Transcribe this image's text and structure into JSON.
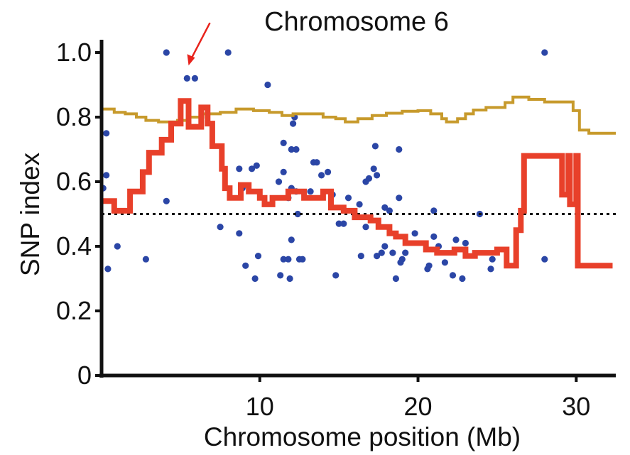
{
  "chart_data": {
    "type": "scatter",
    "title": "Chromosome 6",
    "xlabel": "Chromosome position (Mb)",
    "ylabel": "SNP index",
    "xlim": [
      0,
      32.5
    ],
    "ylim": [
      0,
      1.0
    ],
    "x_ticks": [
      {
        "value": 10,
        "label": "10"
      },
      {
        "value": 20,
        "label": "20"
      },
      {
        "value": 30,
        "label": "30"
      }
    ],
    "y_ticks": [
      {
        "value": 0,
        "label": "0"
      },
      {
        "value": 0.2,
        "label": "0.2"
      },
      {
        "value": 0.4,
        "label": "0.4"
      },
      {
        "value": 0.6,
        "label": "0.6"
      },
      {
        "value": 0.8,
        "label": "0.8"
      },
      {
        "value": 1.0,
        "label": "1.0"
      }
    ],
    "reference_line": {
      "y": 0.5,
      "style": "dotted",
      "color": "#111111"
    },
    "arrow_marker": {
      "x": 5.5,
      "y": 0.96,
      "color": "#e8231c"
    },
    "series": [
      {
        "kind": "points",
        "color": "#2b46a6",
        "points": [
          [
            0.1,
            0.58
          ],
          [
            0.3,
            0.75
          ],
          [
            0.3,
            0.62
          ],
          [
            0.4,
            0.33
          ],
          [
            1.0,
            0.4
          ],
          [
            2.8,
            0.36
          ],
          [
            4.1,
            1.0
          ],
          [
            4.1,
            0.54
          ],
          [
            5.4,
            0.92
          ],
          [
            5.9,
            0.92
          ],
          [
            8.0,
            1.0
          ],
          [
            7.5,
            0.46
          ],
          [
            8.7,
            0.64
          ],
          [
            8.7,
            0.44
          ],
          [
            8.9,
            0.58
          ],
          [
            9.1,
            0.34
          ],
          [
            9.5,
            0.64
          ],
          [
            9.8,
            0.65
          ],
          [
            9.7,
            0.3
          ],
          [
            9.9,
            0.37
          ],
          [
            10.5,
            0.9
          ],
          [
            11.2,
            0.6
          ],
          [
            11.5,
            0.72
          ],
          [
            11.5,
            0.63
          ],
          [
            11.5,
            0.36
          ],
          [
            11.3,
            0.31
          ],
          [
            11.8,
            0.55
          ],
          [
            11.8,
            0.36
          ],
          [
            11.9,
            0.3
          ],
          [
            12.0,
            0.7
          ],
          [
            12.0,
            0.58
          ],
          [
            12.0,
            0.42
          ],
          [
            12.1,
            0.78
          ],
          [
            12.2,
            0.8
          ],
          [
            12.3,
            0.7
          ],
          [
            12.5,
            0.36
          ],
          [
            12.3,
            0.57
          ],
          [
            12.4,
            0.5
          ],
          [
            12.7,
            0.36
          ],
          [
            13.2,
            0.57
          ],
          [
            13.4,
            0.66
          ],
          [
            13.6,
            0.66
          ],
          [
            13.9,
            0.62
          ],
          [
            14.3,
            0.63
          ],
          [
            14.6,
            0.56
          ],
          [
            14.8,
            0.31
          ],
          [
            15.0,
            0.47
          ],
          [
            15.3,
            0.47
          ],
          [
            15.6,
            0.55
          ],
          [
            16.0,
            0.5
          ],
          [
            16.3,
            0.53
          ],
          [
            16.4,
            0.37
          ],
          [
            16.7,
            0.6
          ],
          [
            16.7,
            0.46
          ],
          [
            16.9,
            0.61
          ],
          [
            17.2,
            0.64
          ],
          [
            17.3,
            0.71
          ],
          [
            17.4,
            0.62
          ],
          [
            17.4,
            0.37
          ],
          [
            17.7,
            0.38
          ],
          [
            17.9,
            0.52
          ],
          [
            17.9,
            0.4
          ],
          [
            18.2,
            0.51
          ],
          [
            18.4,
            0.38
          ],
          [
            18.6,
            0.3
          ],
          [
            18.8,
            0.7
          ],
          [
            18.8,
            0.55
          ],
          [
            18.9,
            0.35
          ],
          [
            19.0,
            0.36
          ],
          [
            19.2,
            0.38
          ],
          [
            19.8,
            0.44
          ],
          [
            20.6,
            0.33
          ],
          [
            20.7,
            0.34
          ],
          [
            21.0,
            0.51
          ],
          [
            21.0,
            0.43
          ],
          [
            21.3,
            0.4
          ],
          [
            21.7,
            0.35
          ],
          [
            22.2,
            0.31
          ],
          [
            22.4,
            0.42
          ],
          [
            22.8,
            0.3
          ],
          [
            23.0,
            0.41
          ],
          [
            23.9,
            0.5
          ],
          [
            24.6,
            0.33
          ],
          [
            24.7,
            0.36
          ],
          [
            28.0,
            1.0
          ],
          [
            28.0,
            0.36
          ]
        ]
      },
      {
        "kind": "step-line",
        "color": "#c79a2c",
        "points": [
          [
            0,
            0.825
          ],
          [
            0.8,
            0.825
          ],
          [
            0.8,
            0.815
          ],
          [
            1.5,
            0.815
          ],
          [
            1.5,
            0.81
          ],
          [
            2.2,
            0.81
          ],
          [
            2.2,
            0.8
          ],
          [
            2.8,
            0.8
          ],
          [
            2.8,
            0.79
          ],
          [
            3.6,
            0.79
          ],
          [
            3.6,
            0.785
          ],
          [
            4.8,
            0.785
          ],
          [
            4.8,
            0.79
          ],
          [
            5.5,
            0.79
          ],
          [
            5.5,
            0.8
          ],
          [
            6.4,
            0.8
          ],
          [
            6.4,
            0.81
          ],
          [
            7.5,
            0.81
          ],
          [
            7.5,
            0.815
          ],
          [
            8.5,
            0.815
          ],
          [
            8.5,
            0.825
          ],
          [
            9.6,
            0.825
          ],
          [
            9.6,
            0.82
          ],
          [
            10.6,
            0.82
          ],
          [
            10.6,
            0.815
          ],
          [
            11.4,
            0.815
          ],
          [
            11.4,
            0.805
          ],
          [
            12.1,
            0.805
          ],
          [
            12.1,
            0.81
          ],
          [
            14.0,
            0.81
          ],
          [
            14.0,
            0.8
          ],
          [
            14.8,
            0.8
          ],
          [
            14.8,
            0.795
          ],
          [
            15.4,
            0.795
          ],
          [
            15.4,
            0.785
          ],
          [
            16.2,
            0.785
          ],
          [
            16.2,
            0.795
          ],
          [
            17.1,
            0.795
          ],
          [
            17.1,
            0.805
          ],
          [
            18.0,
            0.805
          ],
          [
            18.0,
            0.812
          ],
          [
            19.0,
            0.812
          ],
          [
            19.0,
            0.818
          ],
          [
            20.0,
            0.818
          ],
          [
            20.0,
            0.82
          ],
          [
            20.8,
            0.82
          ],
          [
            20.8,
            0.81
          ],
          [
            21.5,
            0.81
          ],
          [
            21.5,
            0.795
          ],
          [
            21.8,
            0.795
          ],
          [
            21.8,
            0.785
          ],
          [
            22.5,
            0.785
          ],
          [
            22.5,
            0.795
          ],
          [
            23.0,
            0.795
          ],
          [
            23.0,
            0.81
          ],
          [
            23.5,
            0.81
          ],
          [
            23.5,
            0.822
          ],
          [
            24.3,
            0.822
          ],
          [
            24.3,
            0.83
          ],
          [
            25.5,
            0.83
          ],
          [
            25.5,
            0.845
          ],
          [
            26.0,
            0.845
          ],
          [
            26.0,
            0.862
          ],
          [
            27.0,
            0.862
          ],
          [
            27.0,
            0.855
          ],
          [
            28.0,
            0.855
          ],
          [
            28.0,
            0.847
          ],
          [
            29.8,
            0.847
          ],
          [
            29.8,
            0.82
          ],
          [
            30.2,
            0.82
          ],
          [
            30.2,
            0.76
          ],
          [
            30.8,
            0.76
          ],
          [
            30.8,
            0.75
          ],
          [
            32.5,
            0.75
          ]
        ]
      },
      {
        "kind": "step-line",
        "color": "#e8402a",
        "points": [
          [
            0,
            0.54
          ],
          [
            0.8,
            0.54
          ],
          [
            0.8,
            0.51
          ],
          [
            1.8,
            0.51
          ],
          [
            1.8,
            0.57
          ],
          [
            2.6,
            0.57
          ],
          [
            2.6,
            0.63
          ],
          [
            3.0,
            0.63
          ],
          [
            3.0,
            0.69
          ],
          [
            3.8,
            0.69
          ],
          [
            3.8,
            0.73
          ],
          [
            4.4,
            0.73
          ],
          [
            4.4,
            0.78
          ],
          [
            5.0,
            0.78
          ],
          [
            5.0,
            0.85
          ],
          [
            5.5,
            0.85
          ],
          [
            5.5,
            0.77
          ],
          [
            6.3,
            0.77
          ],
          [
            6.3,
            0.83
          ],
          [
            6.7,
            0.83
          ],
          [
            6.7,
            0.78
          ],
          [
            7.0,
            0.78
          ],
          [
            7.0,
            0.71
          ],
          [
            7.6,
            0.71
          ],
          [
            7.6,
            0.64
          ],
          [
            7.8,
            0.64
          ],
          [
            7.8,
            0.58
          ],
          [
            8.1,
            0.58
          ],
          [
            8.1,
            0.55
          ],
          [
            8.8,
            0.55
          ],
          [
            8.8,
            0.59
          ],
          [
            9.3,
            0.59
          ],
          [
            9.3,
            0.57
          ],
          [
            10.0,
            0.57
          ],
          [
            10.0,
            0.55
          ],
          [
            10.3,
            0.55
          ],
          [
            10.3,
            0.53
          ],
          [
            10.8,
            0.53
          ],
          [
            10.8,
            0.55
          ],
          [
            11.8,
            0.55
          ],
          [
            11.8,
            0.57
          ],
          [
            12.8,
            0.57
          ],
          [
            12.8,
            0.55
          ],
          [
            14.0,
            0.55
          ],
          [
            14.0,
            0.57
          ],
          [
            14.5,
            0.57
          ],
          [
            14.5,
            0.52
          ],
          [
            15.3,
            0.52
          ],
          [
            15.3,
            0.51
          ],
          [
            16.0,
            0.51
          ],
          [
            16.0,
            0.49
          ],
          [
            17.0,
            0.49
          ],
          [
            17.0,
            0.48
          ],
          [
            17.5,
            0.48
          ],
          [
            17.5,
            0.46
          ],
          [
            18.2,
            0.46
          ],
          [
            18.2,
            0.44
          ],
          [
            18.6,
            0.44
          ],
          [
            18.6,
            0.43
          ],
          [
            19.2,
            0.43
          ],
          [
            19.2,
            0.41
          ],
          [
            20.5,
            0.41
          ],
          [
            20.5,
            0.39
          ],
          [
            21.2,
            0.39
          ],
          [
            21.2,
            0.38
          ],
          [
            22.3,
            0.38
          ],
          [
            22.3,
            0.39
          ],
          [
            23.0,
            0.39
          ],
          [
            23.0,
            0.37
          ],
          [
            23.6,
            0.37
          ],
          [
            23.6,
            0.38
          ],
          [
            25.0,
            0.38
          ],
          [
            25.0,
            0.39
          ],
          [
            25.6,
            0.39
          ],
          [
            25.6,
            0.34
          ],
          [
            26.2,
            0.34
          ],
          [
            26.2,
            0.45
          ],
          [
            26.5,
            0.45
          ],
          [
            26.5,
            0.51
          ],
          [
            26.7,
            0.51
          ],
          [
            26.7,
            0.68
          ],
          [
            29.1,
            0.68
          ],
          [
            29.1,
            0.56
          ],
          [
            29.5,
            0.56
          ],
          [
            29.5,
            0.68
          ],
          [
            29.6,
            0.68
          ],
          [
            29.6,
            0.53
          ],
          [
            30.0,
            0.53
          ],
          [
            30.0,
            0.68
          ],
          [
            30.1,
            0.68
          ],
          [
            30.1,
            0.34
          ],
          [
            32.3,
            0.34
          ]
        ]
      }
    ]
  }
}
